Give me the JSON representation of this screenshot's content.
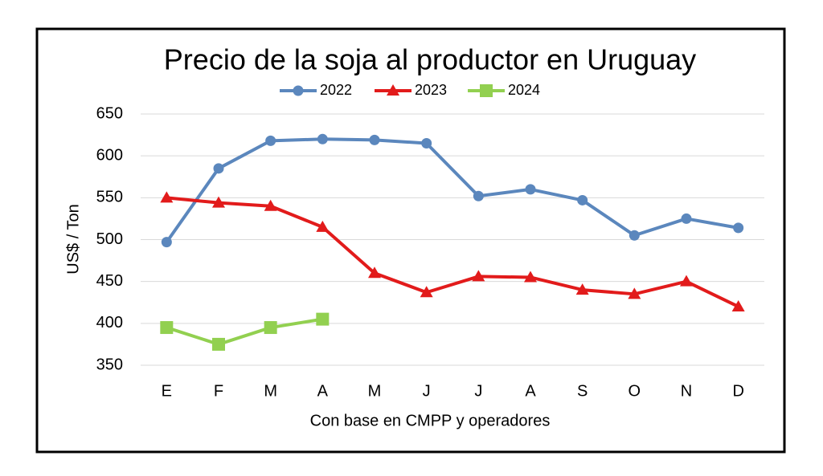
{
  "chart_data": {
    "type": "line",
    "title": "Precio de la soja al productor en Uruguay",
    "y_label": "US$ / Ton",
    "x_label": "Con base en CMPP y operadores",
    "categories": [
      "E",
      "F",
      "M",
      "A",
      "M",
      "J",
      "J",
      "A",
      "S",
      "O",
      "N",
      "D"
    ],
    "series": [
      {
        "name": "2022",
        "color": "#5b87bd",
        "marker": "circle",
        "values": [
          497,
          585,
          618,
          620,
          619,
          615,
          552,
          560,
          547,
          505,
          525,
          514
        ]
      },
      {
        "name": "2023",
        "color": "#e21b1b",
        "marker": "triangle",
        "values": [
          550,
          544,
          540,
          515,
          460,
          437,
          456,
          455,
          440,
          435,
          450,
          420
        ]
      },
      {
        "name": "2024",
        "color": "#92d050",
        "marker": "square",
        "values": [
          395,
          375,
          395,
          405,
          null,
          null,
          null,
          null,
          null,
          null,
          null,
          null
        ]
      }
    ],
    "ylim": [
      350,
      650
    ],
    "yticks": [
      350,
      400,
      450,
      500,
      550,
      600,
      650
    ],
    "grid": true,
    "legend": "top"
  }
}
